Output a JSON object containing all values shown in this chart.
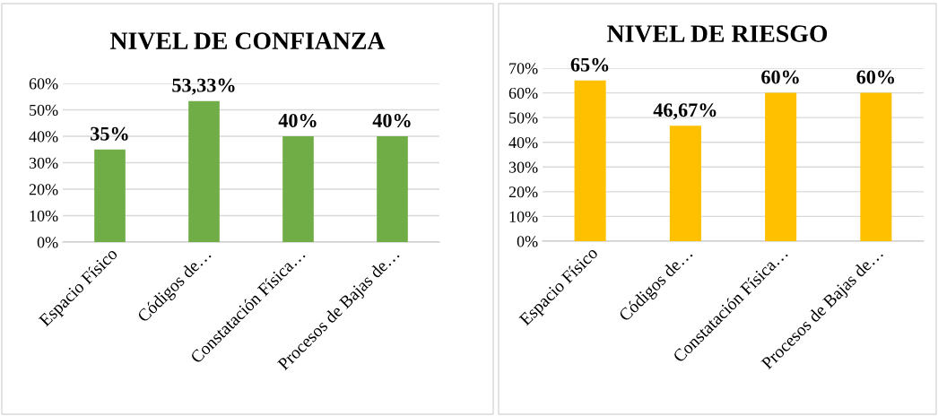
{
  "chart_data": [
    {
      "type": "bar",
      "title": "NIVEL DE CONFIANZA",
      "categories": [
        "Espacio Físico",
        "Códigos de…",
        "Constatación Física…",
        "Procesos de Bajas de…"
      ],
      "values": [
        35,
        53.33,
        40,
        40
      ],
      "value_labels": [
        "35%",
        "53,33%",
        "40%",
        "40%"
      ],
      "color": "#70ad47",
      "ylim": [
        0,
        60
      ],
      "yticks": [
        {
          "value": 0,
          "label": "0%"
        },
        {
          "value": 10,
          "label": "10%"
        },
        {
          "value": 20,
          "label": "20%"
        },
        {
          "value": 30,
          "label": "30%"
        },
        {
          "value": 40,
          "label": "40%"
        },
        {
          "value": 50,
          "label": "50%"
        },
        {
          "value": 60,
          "label": "60%"
        }
      ],
      "grid": "y"
    },
    {
      "type": "bar",
      "title": "NIVEL DE RIESGO",
      "categories": [
        "Espacio Físico",
        "Códigos de…",
        "Constatación Física…",
        "Procesos de Bajas de…"
      ],
      "values": [
        65,
        46.67,
        60,
        60
      ],
      "value_labels": [
        "65%",
        "46,67%",
        "60%",
        "60%"
      ],
      "color": "#ffc000",
      "ylim": [
        0,
        70
      ],
      "yticks": [
        {
          "value": 0,
          "label": "0%"
        },
        {
          "value": 10,
          "label": "10%"
        },
        {
          "value": 20,
          "label": "20%"
        },
        {
          "value": 30,
          "label": "30%"
        },
        {
          "value": 40,
          "label": "40%"
        },
        {
          "value": 50,
          "label": "50%"
        },
        {
          "value": 60,
          "label": "60%"
        },
        {
          "value": 70,
          "label": "70%"
        }
      ],
      "grid": "y"
    }
  ]
}
